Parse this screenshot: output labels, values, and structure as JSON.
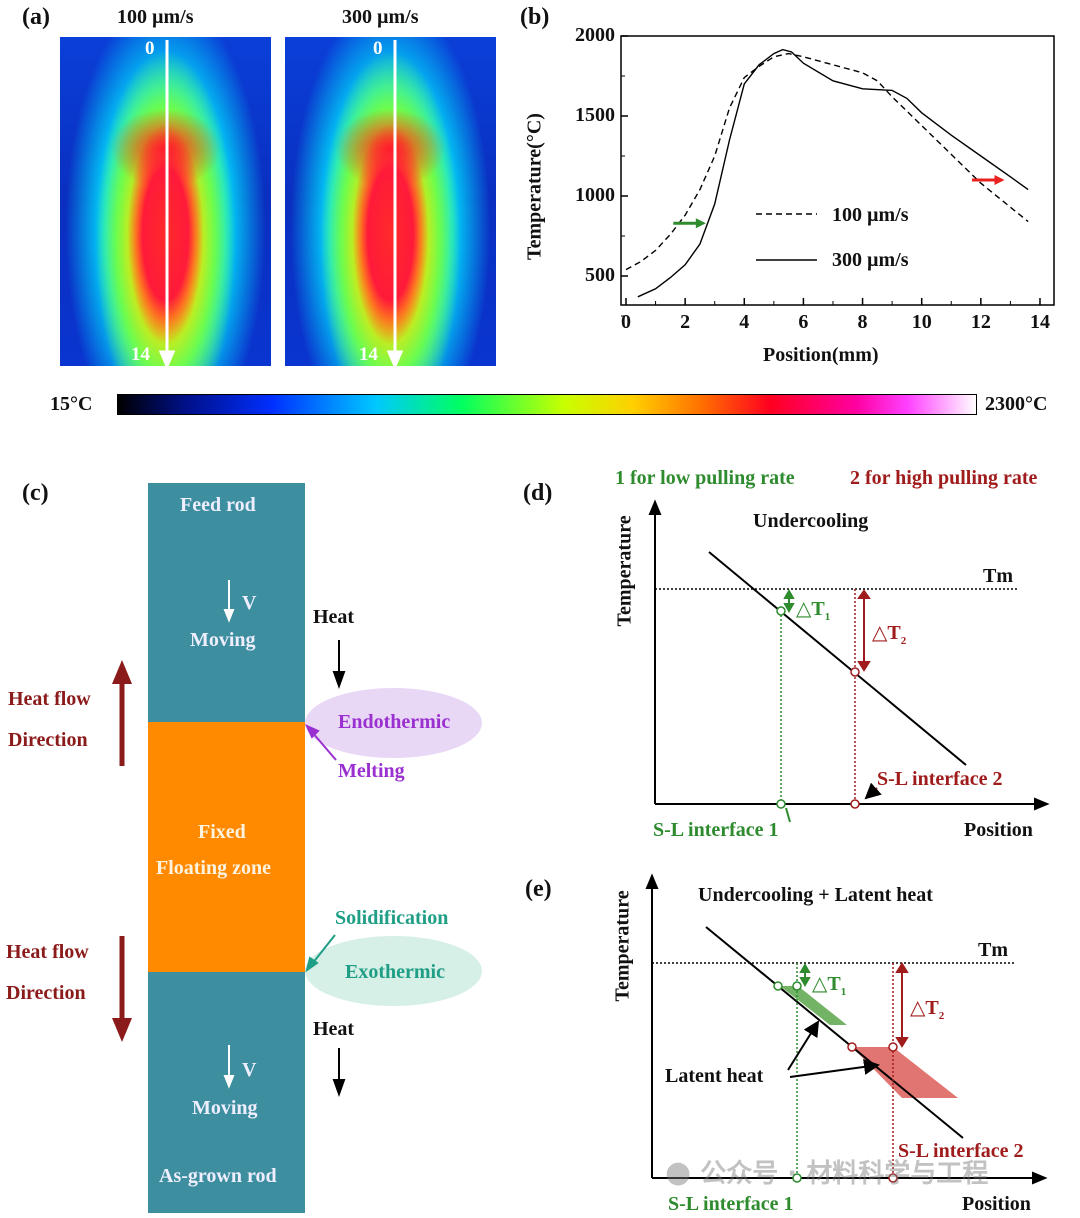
{
  "panel_a": {
    "label": "(a)",
    "titles": [
      "100 µm/s",
      "300 µm/s"
    ],
    "start": "0",
    "end": "14"
  },
  "colorbar": {
    "min": "15°C",
    "max": "2300°C"
  },
  "chart_data": {
    "type": "line",
    "label": "(b)",
    "xlabel": "Position(mm)",
    "ylabel": "Temperature(°C)",
    "xlim": [
      -0.2,
      14.5
    ],
    "ylim": [
      320,
      2000
    ],
    "xticks": [
      "0",
      "2",
      "4",
      "6",
      "8",
      "10",
      "12",
      "14"
    ],
    "yticks": [
      "500",
      "1000",
      "1500",
      "2000"
    ],
    "legend_placement": "center-right",
    "series": [
      {
        "name": "100 µm/s",
        "style": "dashed",
        "x": [
          0,
          0.5,
          1,
          1.5,
          2,
          2.5,
          3,
          3.5,
          4,
          4.5,
          5,
          5.5,
          6,
          7,
          8,
          8.5,
          9,
          10,
          11,
          12,
          13,
          13.6
        ],
        "y": [
          540,
          590,
          660,
          760,
          880,
          1040,
          1250,
          1550,
          1740,
          1810,
          1870,
          1890,
          1870,
          1820,
          1770,
          1720,
          1620,
          1440,
          1260,
          1080,
          930,
          840
        ]
      },
      {
        "name": "300 µm/s",
        "style": "solid",
        "x": [
          0.4,
          1,
          1.5,
          2,
          2.5,
          3,
          3.5,
          4,
          4.5,
          5,
          5.3,
          5.6,
          6,
          7,
          8,
          9,
          9.5,
          10,
          11,
          12,
          13,
          13.6
        ],
        "y": [
          370,
          420,
          490,
          570,
          700,
          950,
          1350,
          1700,
          1820,
          1890,
          1915,
          1900,
          1830,
          1720,
          1670,
          1660,
          1610,
          1520,
          1380,
          1250,
          1120,
          1040
        ]
      }
    ],
    "annotations": [
      {
        "type": "arrow",
        "color": "#2e8b2e",
        "x": [
          1.6,
          2.7
        ],
        "y": 830
      },
      {
        "type": "arrow",
        "color": "#e8201e",
        "x": [
          11.7,
          12.8
        ],
        "y": 1100
      }
    ]
  },
  "panel_c": {
    "label": "(c)",
    "feed_rod": "Feed rod",
    "v": "V",
    "moving": "Moving",
    "fixed": "Fixed",
    "floating_zone": "Floating zone",
    "as_grown": "As-grown rod",
    "heat": "Heat",
    "heat_flow": "Heat flow",
    "direction": "Direction",
    "endothermic": "Endothermic",
    "melting": "Melting",
    "solidification": "Solidification",
    "exothermic": "Exothermic"
  },
  "legend_top": {
    "low": "1 for low pulling rate",
    "high": "2 for high pulling rate"
  },
  "panel_d": {
    "label": "(d)",
    "title": "Undercooling",
    "ylabel": "Temperature",
    "xlabel": "Position",
    "tm": "Tm",
    "dt1": "△T",
    "dt1_sub": "1",
    "dt2": "△T",
    "dt2_sub": "2",
    "sl1": "S-L interface 1",
    "sl2": "S-L interface 2"
  },
  "panel_e": {
    "label": "(e)",
    "title": "Undercooling + Latent heat",
    "ylabel": "Temperature",
    "xlabel": "Position",
    "tm": "Tm",
    "dt1": "△T",
    "dt1_sub": "1",
    "dt2": "△T",
    "dt2_sub": "2",
    "latent": "Latent heat",
    "sl1": "S-L interface 1",
    "sl2": "S-L interface 2"
  },
  "watermark": "公众号 · 材料科学与工程",
  "colors": {
    "green": "#2e8b2e",
    "darkred": "#a01c1c",
    "teal": "#3d8e9e",
    "orange": "#ff8a00",
    "purple": "#9b30d0",
    "sea": "#1f9e86"
  }
}
